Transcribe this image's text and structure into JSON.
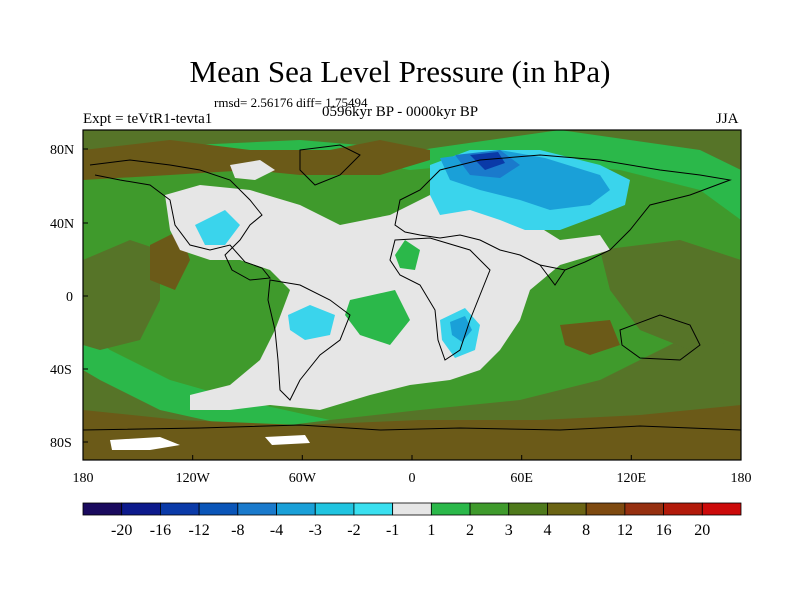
{
  "title": "Mean Sea Level Pressure (in hPa)",
  "stats": "rmsd= 2.56176 diff= 1.75494",
  "experiment": "Expt = teVtR1-tevta1",
  "period": "0596kyr BP - 0000kyr BP",
  "season": "JJA",
  "lat_labels": [
    "80N",
    "40N",
    "0",
    "40S",
    "80S"
  ],
  "lon_labels": [
    "180",
    "120W",
    "60W",
    "0",
    "60E",
    "120E",
    "180"
  ],
  "colorbar": {
    "labels": [
      "-20",
      "-16",
      "-12",
      "-8",
      "-4",
      "-3",
      "-2",
      "-1",
      "1",
      "2",
      "3",
      "4",
      "8",
      "12",
      "16",
      "20"
    ],
    "colors": [
      "#1a0a5e",
      "#0d1a8c",
      "#0a3aa8",
      "#0a55b8",
      "#1a7acc",
      "#1aa0d8",
      "#20c4e0",
      "#3ae0f0",
      "#e6e6e6",
      "#2bb84a",
      "#3f9a2c",
      "#4f7a1c",
      "#6b6414",
      "#7e4a10",
      "#963010",
      "#b21a0a",
      "#cc0a0a"
    ]
  },
  "colors": {
    "green": "#2bb84a",
    "dark_green": "#3f9a2c",
    "olive": "#567428",
    "brown": "#6b5a18",
    "grey": "#e6e6e6",
    "white": "#ffffff",
    "light_blue": "#3ad4ec",
    "mid_blue": "#1aa0d8",
    "blue": "#1a7acc",
    "dark_blue": "#0a3aa8"
  }
}
